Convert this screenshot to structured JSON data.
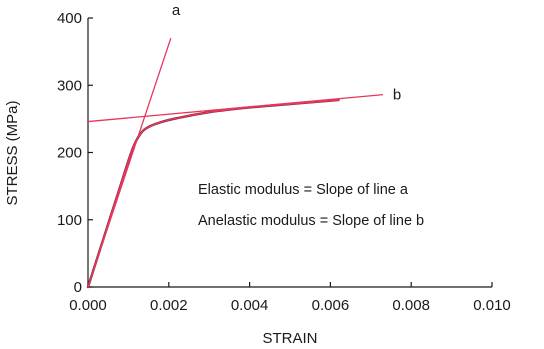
{
  "chart_data": {
    "type": "line",
    "xlabel": "STRAIN",
    "ylabel": "STRESS (MPa)",
    "xlim": [
      0,
      0.01
    ],
    "ylim": [
      0,
      400
    ],
    "x_ticks": [
      "0.000",
      "0.002",
      "0.004",
      "0.006",
      "0.008",
      "0.010"
    ],
    "y_ticks": [
      "0",
      "100",
      "200",
      "300",
      "400"
    ],
    "grid": false,
    "series": [
      {
        "color": "#e8365d",
        "x": [
          0.0,
          0.0004,
          0.0008,
          0.0011,
          0.0013,
          0.0015,
          0.0018,
          0.0022,
          0.003,
          0.004,
          0.005,
          0.006,
          0.0062
        ],
        "y": [
          0,
          75,
          150,
          205,
          228,
          238,
          245,
          251,
          260,
          267,
          272,
          277,
          278
        ]
      },
      {
        "name": "a",
        "color": "#e8365d",
        "x": [
          0.0,
          0.00205
        ],
        "y": [
          0,
          370
        ]
      },
      {
        "name": "b",
        "color": "#e8365d",
        "x": [
          0.0,
          0.0073
        ],
        "y": [
          246,
          286
        ]
      }
    ],
    "annotations": [
      "Elastic modulus = Slope of line a",
      "Anelastic modulus = Slope of line b"
    ]
  }
}
